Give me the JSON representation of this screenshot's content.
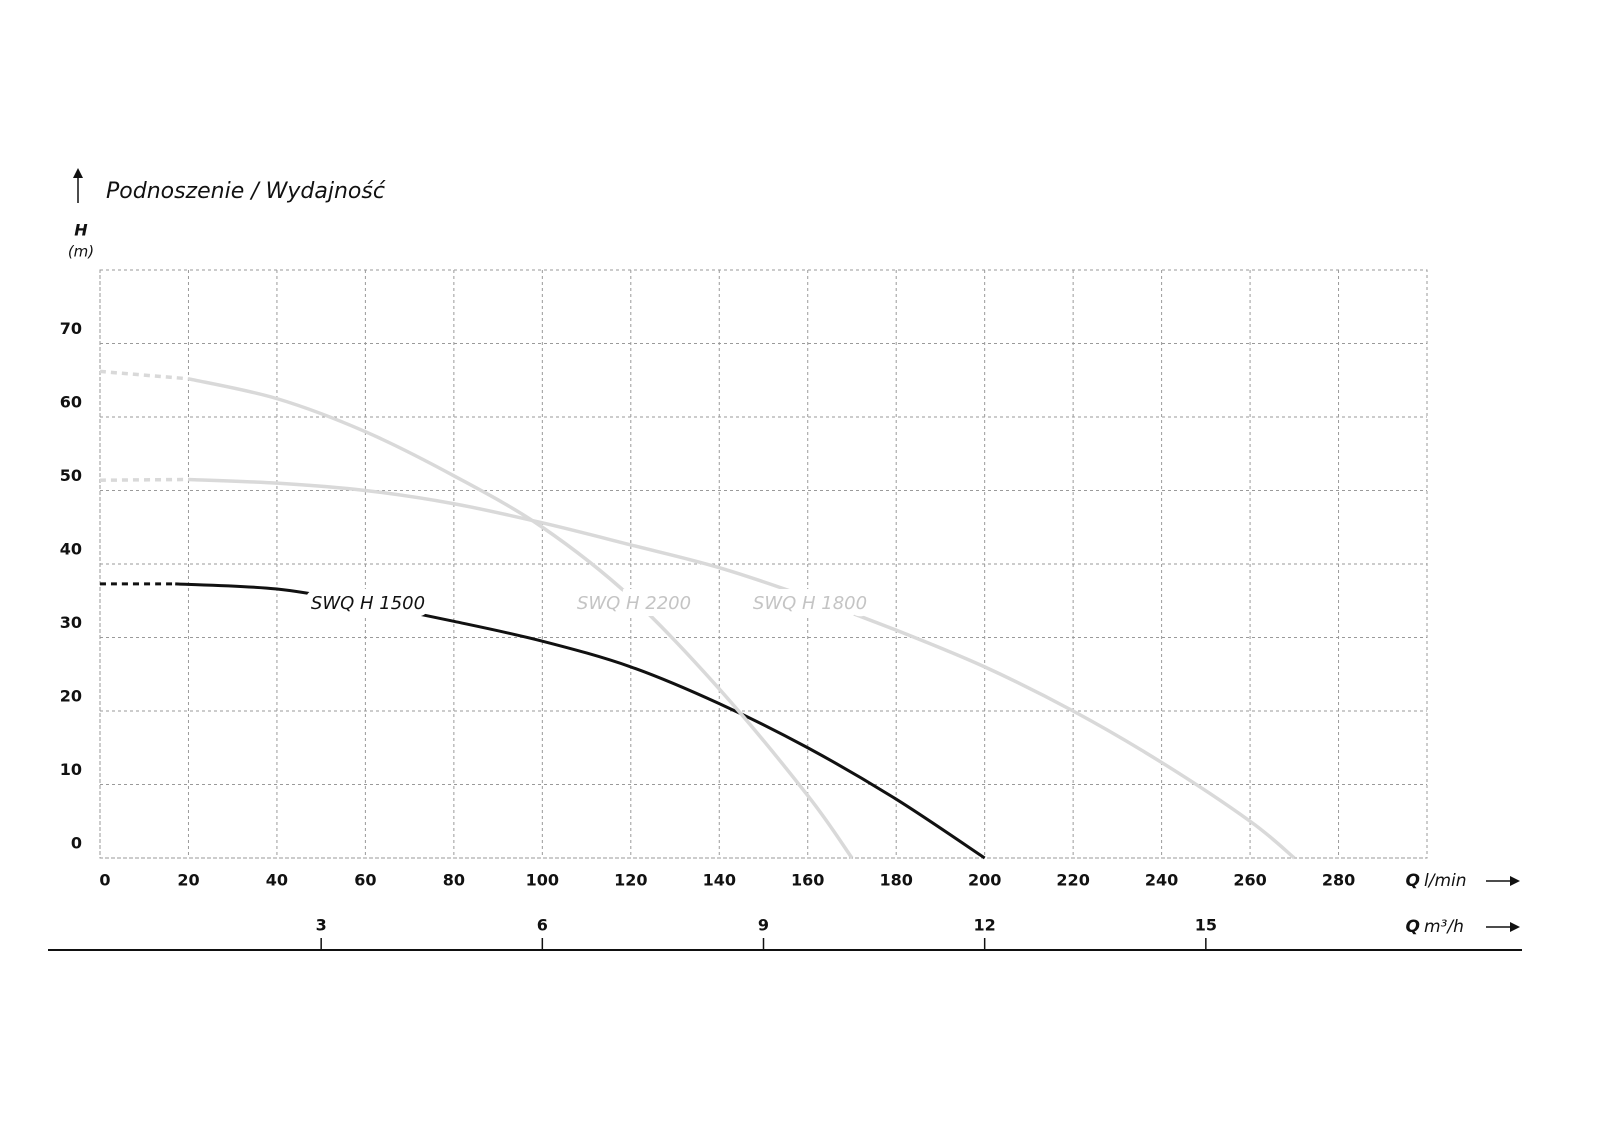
{
  "chart_data": {
    "type": "line",
    "title": "Podnoszenie / Wydajność",
    "y_label": "H",
    "y_unit": "(m)",
    "x_label": "Q",
    "x_unit": "l/min",
    "x2_label": "Q",
    "x2_unit": "m³/h",
    "xlim": [
      0,
      300
    ],
    "xticks": [
      0,
      20,
      40,
      60,
      80,
      100,
      120,
      140,
      160,
      180,
      200,
      220,
      240,
      260,
      280
    ],
    "x2lim": [
      0,
      18
    ],
    "x2ticks": [
      3,
      6,
      9,
      12,
      15
    ],
    "ylim": [
      0,
      80
    ],
    "yticks": [
      0,
      10,
      20,
      30,
      40,
      50,
      60,
      70
    ],
    "grid": true,
    "series": [
      {
        "name": "SWQ H 1500",
        "color": "#111111",
        "dash_to": 1,
        "x": [
          0,
          17,
          40,
          60,
          80,
          100,
          120,
          140,
          160,
          180,
          200
        ],
        "values": [
          37.3,
          37.3,
          36.6,
          34.6,
          32.2,
          29.5,
          26,
          21,
          15,
          8,
          0
        ]
      },
      {
        "name": "SWQ H 2200",
        "color": "#d9d9d9",
        "dash_to": 1,
        "x": [
          0,
          20,
          40,
          60,
          80,
          100,
          120,
          140,
          160,
          170
        ],
        "values": [
          66.2,
          65.2,
          62.5,
          58,
          52,
          45,
          35.5,
          23,
          8.5,
          0
        ]
      },
      {
        "name": "SWQ H 1800",
        "color": "#d9d9d9",
        "dash_to": 1,
        "x": [
          0,
          20,
          40,
          60,
          80,
          100,
          120,
          140,
          160,
          180,
          200,
          220,
          240,
          260,
          270
        ],
        "values": [
          51.4,
          51.5,
          51,
          50,
          48.2,
          45.6,
          42.6,
          39.5,
          35.5,
          31,
          26,
          20,
          13,
          5,
          0
        ]
      }
    ]
  }
}
